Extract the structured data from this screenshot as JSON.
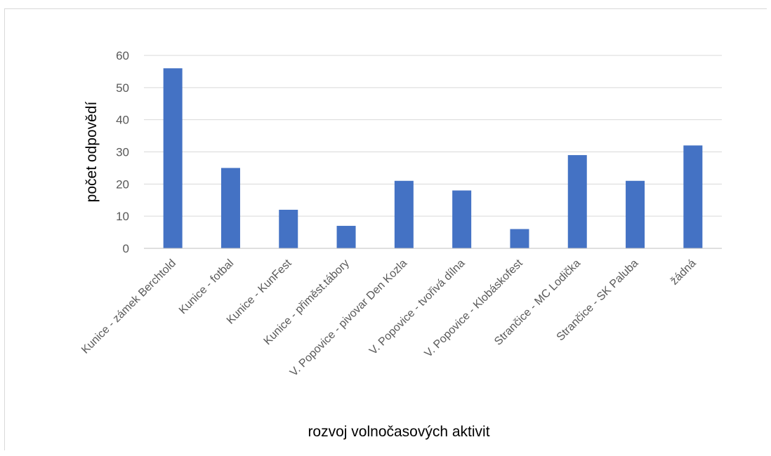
{
  "chart_data": {
    "type": "bar",
    "title": "",
    "xlabel": "rozvoj volnočasových aktivit",
    "ylabel": "počet odpovědí",
    "categories": [
      "Kunice - zámek Berchtold",
      "Kunice - fotbal",
      "Kunice - KunFest",
      "Kunice - přiměst.tábory",
      "V. Popovice - pivovar Den Kozla",
      "V. Popovice - tvořivá dílna",
      "V. Popovice - Klobáskofest",
      "Strančice - MC Lodička",
      "Strančice - SK Paluba",
      "žádná"
    ],
    "values": [
      56,
      25,
      12,
      7,
      21,
      18,
      6,
      29,
      21,
      32
    ],
    "ylim": [
      0,
      60
    ],
    "yticks": [
      "0",
      "10",
      "20",
      "30",
      "40",
      "50",
      "60"
    ],
    "grid": true,
    "legend": "none",
    "bar_color": "#4472C4"
  }
}
